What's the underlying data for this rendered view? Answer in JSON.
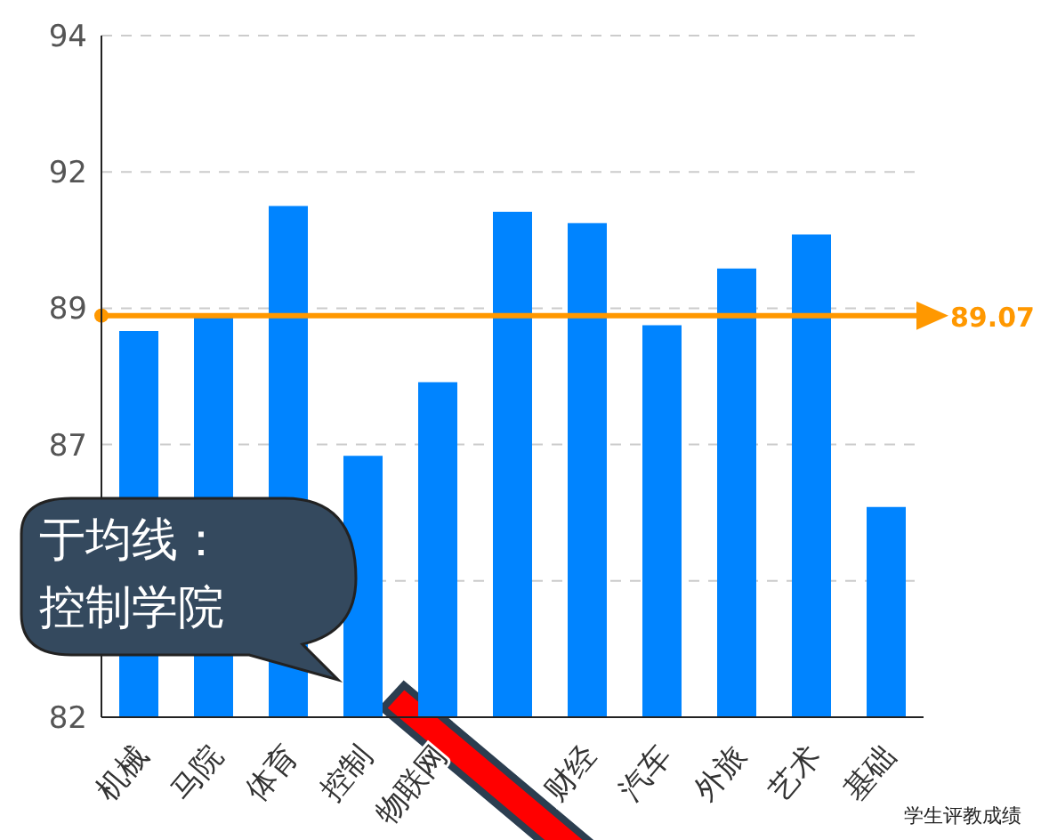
{
  "chart_data": {
    "type": "bar",
    "categories": [
      "机械",
      "马院",
      "体育",
      "控制",
      "物联网",
      null,
      "财经",
      "汽车",
      "外旅",
      "艺术",
      "基础"
    ],
    "values": [
      88.8,
      89.1,
      91.0,
      86.6,
      87.9,
      90.9,
      90.7,
      88.9,
      89.9,
      90.5,
      85.7
    ],
    "color": "#0084ff",
    "ylim": [
      82,
      94
    ],
    "yticks": [
      82,
      {
        "value": 84.4,
        "label": null
      },
      {
        "value": 86.8,
        "label": "87"
      },
      {
        "value": 89.2,
        "label": "89"
      },
      {
        "value": 91.6,
        "label": "92"
      },
      94
    ],
    "grid": "y",
    "ref_lines": [
      {
        "axis": "y",
        "value": 89.07,
        "label": "89.07",
        "color": "#ff9800"
      }
    ],
    "annotations": [
      "于均线：",
      "控制学院",
      "学生评教成绩"
    ]
  }
}
